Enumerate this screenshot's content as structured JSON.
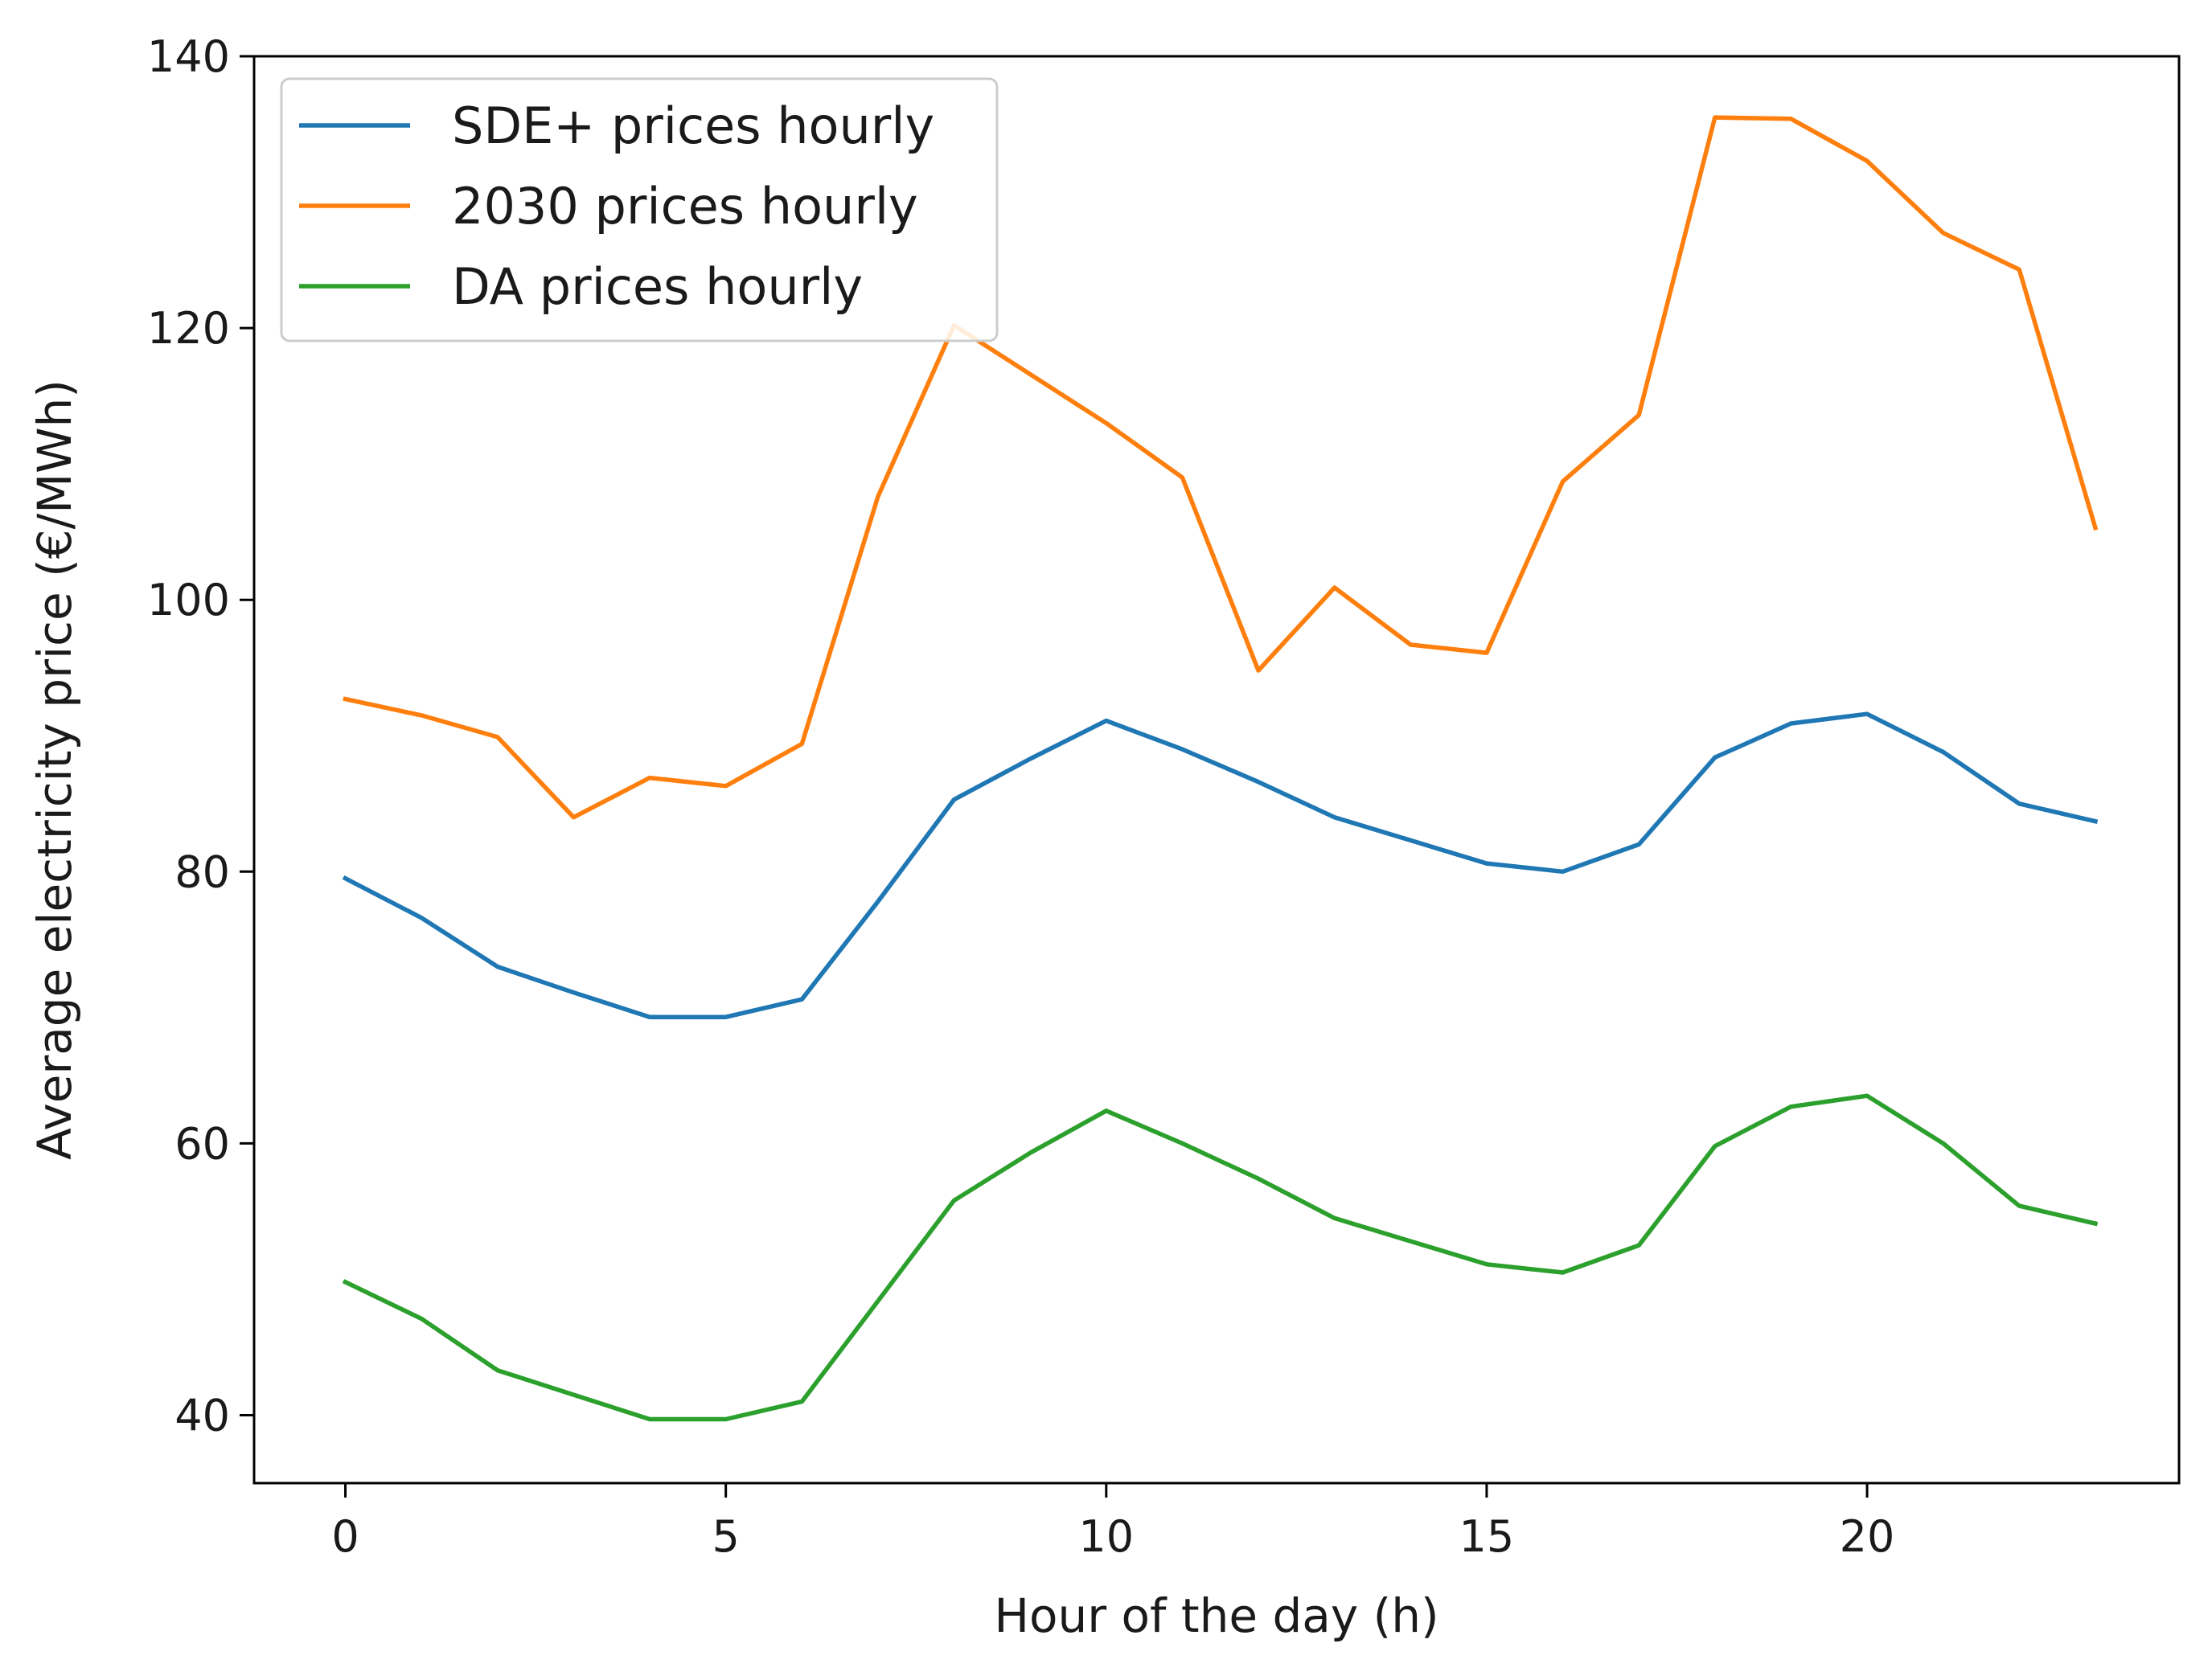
{
  "chart_data": {
    "type": "line",
    "title": "",
    "xlabel": "Hour of the day (h)",
    "ylabel": "Average electricity price (€/MWh)",
    "xlim": [
      -1.2,
      24.1
    ],
    "ylim": [
      35,
      140
    ],
    "xticks": [
      0,
      5,
      10,
      15,
      20
    ],
    "yticks": [
      40,
      60,
      80,
      100,
      120,
      140
    ],
    "grid": false,
    "legend_position": "top-left",
    "x": [
      0,
      1,
      2,
      3,
      4,
      5,
      6,
      7,
      8,
      9,
      10,
      11,
      12,
      13,
      14,
      15,
      16,
      17,
      18,
      19,
      20,
      21,
      22,
      23
    ],
    "series": [
      {
        "name": "SDE+ prices hourly",
        "color": "#1f77b4",
        "values": [
          79.5,
          76.6,
          73.0,
          71.1,
          69.3,
          69.3,
          70.6,
          77.8,
          85.3,
          88.3,
          91.1,
          89.0,
          86.6,
          84.0,
          82.3,
          80.6,
          80.0,
          82.0,
          88.4,
          90.9,
          91.6,
          88.8,
          85.0,
          83.7
        ]
      },
      {
        "name": "2030 prices hourly",
        "color": "#ff7f0e",
        "values": [
          92.7,
          91.5,
          89.9,
          84.0,
          86.9,
          86.3,
          89.4,
          107.6,
          120.2,
          116.6,
          113.0,
          109.0,
          94.8,
          100.9,
          96.7,
          96.1,
          108.7,
          113.6,
          135.5,
          135.4,
          132.3,
          127.0,
          124.3,
          105.3
        ]
      },
      {
        "name": "DA prices hourly",
        "color": "#2ca02c",
        "values": [
          49.8,
          47.1,
          43.3,
          41.5,
          39.7,
          39.7,
          41.0,
          48.4,
          55.8,
          59.3,
          62.4,
          60.0,
          57.4,
          54.5,
          52.8,
          51.1,
          50.5,
          52.5,
          59.8,
          62.7,
          63.5,
          60.0,
          55.4,
          54.1
        ]
      }
    ]
  }
}
